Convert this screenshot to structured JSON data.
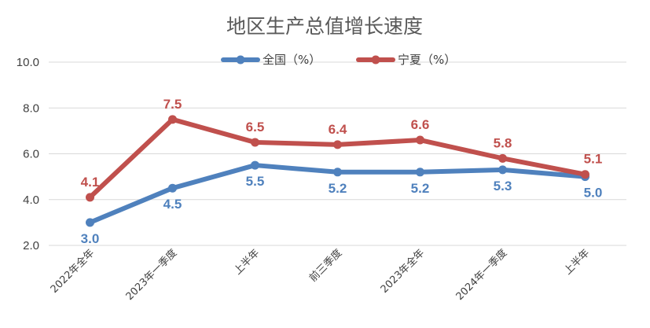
{
  "chart_data": {
    "type": "line",
    "title": "地区生产总值增长速度",
    "categories": [
      "2022年全年",
      "2023年一季度",
      "上半年",
      "前三季度",
      "2023年全年",
      "2024年一季度",
      "上半年"
    ],
    "series": [
      {
        "name": "全国（%）",
        "color": "#4f81bd",
        "values": [
          3.0,
          4.5,
          5.5,
          5.2,
          5.2,
          5.3,
          5.0
        ]
      },
      {
        "name": "宁夏（%）",
        "color": "#c0504d",
        "values": [
          4.1,
          7.5,
          6.5,
          6.4,
          6.6,
          5.8,
          5.1
        ]
      }
    ],
    "y_ticks": [
      "2.0",
      "4.0",
      "6.0",
      "8.0",
      "10.0"
    ],
    "ylim": [
      2,
      10
    ],
    "grid": true,
    "legend": "top-center"
  }
}
